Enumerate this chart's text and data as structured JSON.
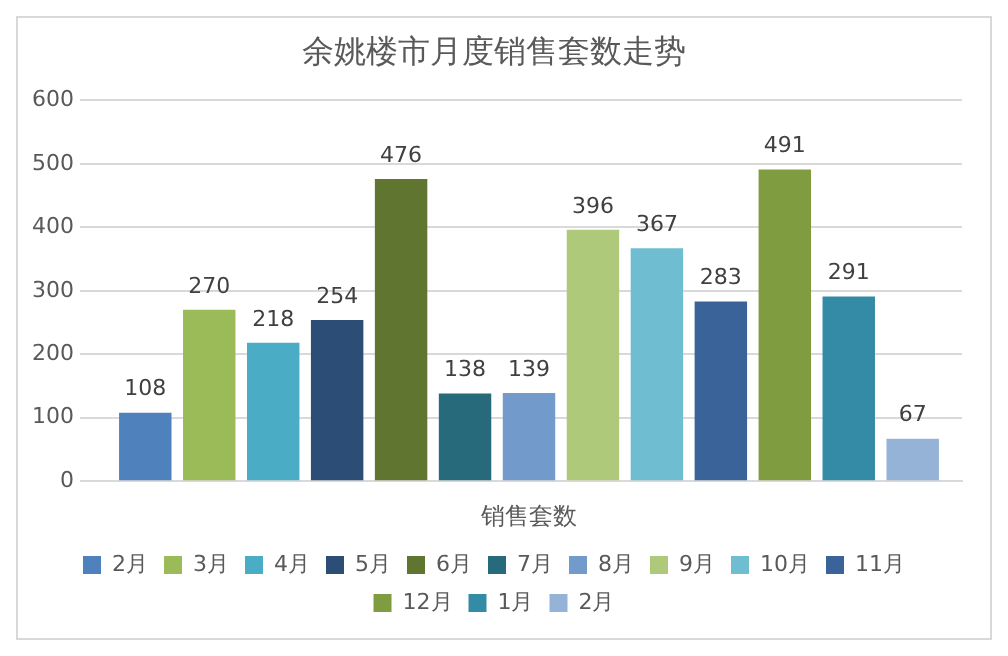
{
  "chart_data": {
    "type": "bar",
    "title": "余姚楼市月度销售套数走势",
    "categories": [
      "销售套数"
    ],
    "series": [
      {
        "name": "2月",
        "color": "#4f81bd",
        "values": [
          108
        ]
      },
      {
        "name": "3月",
        "color": "#9bbb59",
        "values": [
          270
        ]
      },
      {
        "name": "4月",
        "color": "#4bacc6",
        "values": [
          218
        ]
      },
      {
        "name": "5月",
        "color": "#2c4d75",
        "values": [
          254
        ]
      },
      {
        "name": "6月",
        "color": "#5f7530",
        "values": [
          476
        ]
      },
      {
        "name": "7月",
        "color": "#276a7c",
        "values": [
          138
        ]
      },
      {
        "name": "8月",
        "color": "#729aca",
        "values": [
          139
        ]
      },
      {
        "name": "9月",
        "color": "#afc97a",
        "values": [
          396
        ]
      },
      {
        "name": "10月",
        "color": "#6fbdd1",
        "values": [
          367
        ]
      },
      {
        "name": "11月",
        "color": "#3a6499",
        "values": [
          283
        ]
      },
      {
        "name": "12月",
        "color": "#7f9d40",
        "values": [
          491
        ]
      },
      {
        "name": "1月",
        "color": "#338ba5",
        "values": [
          291
        ]
      },
      {
        "name": "2月",
        "color": "#95b3d7",
        "values": [
          67
        ]
      }
    ],
    "ylim": [
      0,
      600
    ],
    "yticks": [
      0,
      100,
      200,
      300,
      400,
      500,
      600
    ],
    "grid": "y",
    "legend": "bottom",
    "data_labels": true
  }
}
